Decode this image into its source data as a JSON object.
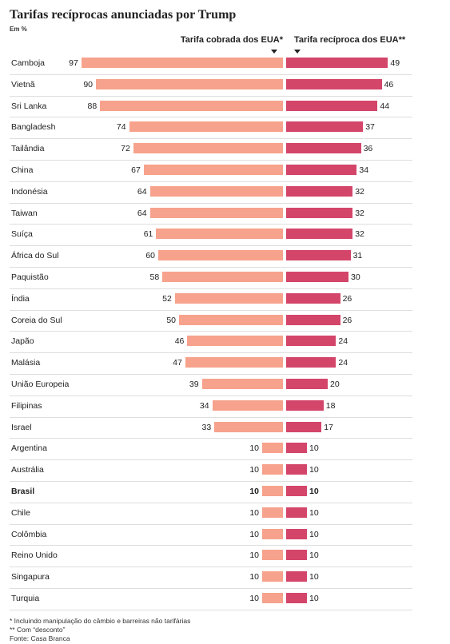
{
  "header": {
    "title": "Tarifas recíprocas anunciadas por Trump",
    "subtitle": "Em %",
    "left_column": "Tarifa cobrada dos EUA*",
    "right_column": "Tarifa recíproca dos EUA**"
  },
  "colors": {
    "left_bar": "#f7a28c",
    "right_bar": "#d4456a"
  },
  "chart_data": {
    "type": "bar",
    "orientation": "horizontal-butterfly",
    "categories": [
      "Camboja",
      "Vietnã",
      "Sri Lanka",
      "Bangladesh",
      "Tailândia",
      "China",
      "Indonésia",
      "Taiwan",
      "Suíça",
      "África do Sul",
      "Paquistão",
      "Índia",
      "Coreia do Sul",
      "Japão",
      "Malásia",
      "União Europeia",
      "Filipinas",
      "Israel",
      "Argentina",
      "Austrália",
      "Brasil",
      "Chile",
      "Colômbia",
      "Reino Unido",
      "Singapura",
      "Turquia"
    ],
    "highlight": [
      "Brasil"
    ],
    "series": [
      {
        "name": "Tarifa cobrada dos EUA*",
        "values": [
          97,
          90,
          88,
          74,
          72,
          67,
          64,
          64,
          61,
          60,
          58,
          52,
          50,
          46,
          47,
          39,
          34,
          33,
          10,
          10,
          10,
          10,
          10,
          10,
          10,
          10
        ]
      },
      {
        "name": "Tarifa recíproca dos EUA**",
        "values": [
          49,
          46,
          44,
          37,
          36,
          34,
          32,
          32,
          32,
          31,
          30,
          26,
          26,
          24,
          24,
          20,
          18,
          17,
          10,
          10,
          10,
          10,
          10,
          10,
          10,
          10
        ]
      }
    ],
    "xlim": [
      0,
      100
    ],
    "title": "Tarifas recíprocas anunciadas por Trump",
    "subtitle": "Em %"
  },
  "footnotes": {
    "note1": "* Incluindo manipulação do câmbio e barreiras não tarifárias",
    "note2": "** Com “desconto”",
    "source": "Fonte: Casa Branca"
  }
}
